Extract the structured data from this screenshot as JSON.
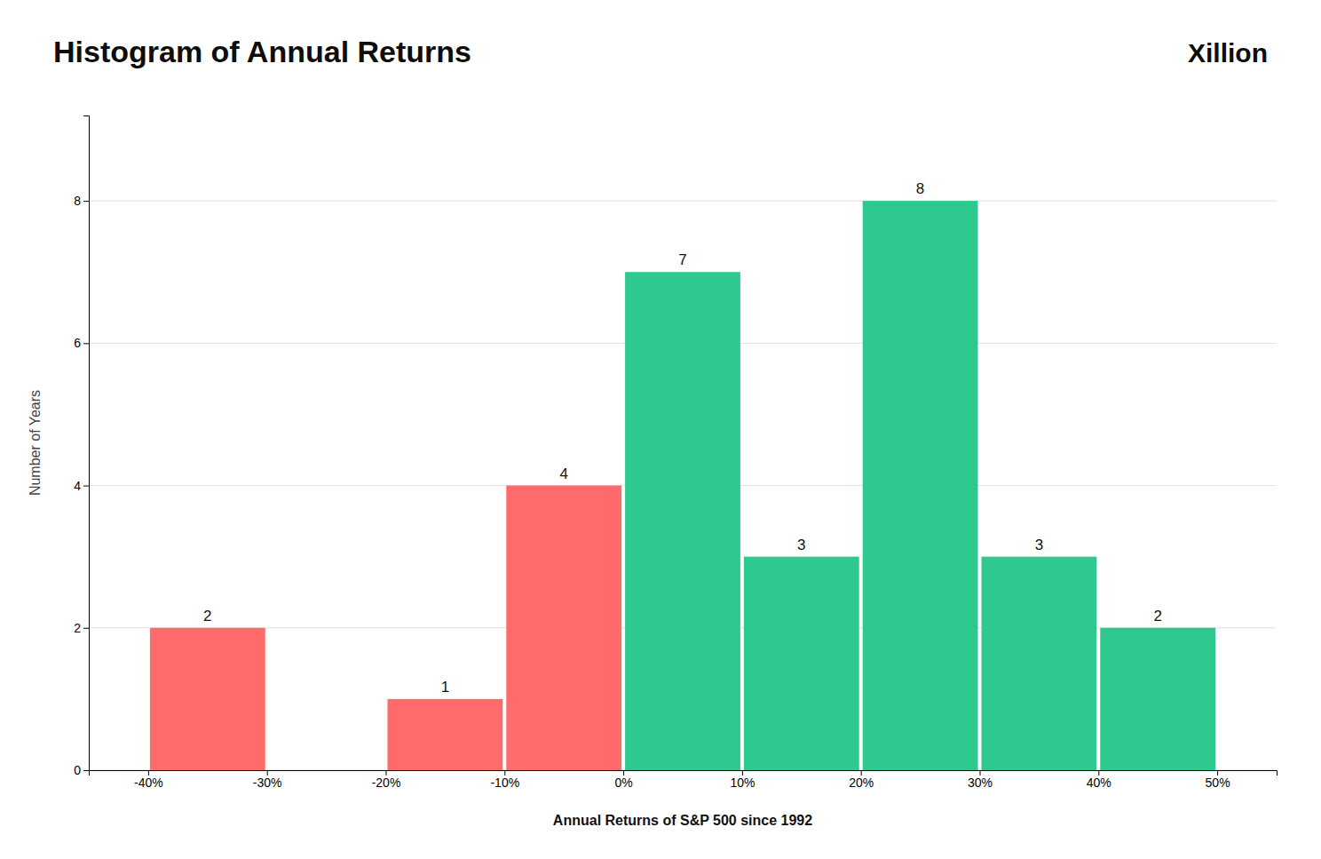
{
  "chart_data": {
    "type": "histogram",
    "title": "Histogram of Annual Returns",
    "xlabel": "Annual Returns of S&P 500 since 1992",
    "ylabel": "Number of Years",
    "bins": [
      -40,
      -30,
      -20,
      -10,
      0,
      10,
      20,
      30,
      40,
      50
    ],
    "values": [
      2,
      0,
      1,
      4,
      7,
      3,
      8,
      3,
      2
    ],
    "colors": [
      "#FF6B6B",
      "#FF6B6B",
      "#FF6B6B",
      "#FF6B6B",
      "#2DC98E",
      "#2DC98E",
      "#2DC98E",
      "#2DC98E",
      "#2DC98E"
    ],
    "data_labels": true,
    "value_labels": [
      "2",
      null,
      "1",
      "4",
      "7",
      "3",
      "8",
      "3",
      "2"
    ],
    "xlim": [
      -45,
      55
    ],
    "xticks": [
      {
        "value": -40,
        "label": "-40%"
      },
      {
        "value": -30,
        "label": "-30%"
      },
      {
        "value": -20,
        "label": "-20%"
      },
      {
        "value": -10,
        "label": "-10%"
      },
      {
        "value": 0,
        "label": "0%"
      },
      {
        "value": 10,
        "label": "10%"
      },
      {
        "value": 20,
        "label": "20%"
      },
      {
        "value": 30,
        "label": "30%"
      },
      {
        "value": 40,
        "label": "40%"
      },
      {
        "value": 50,
        "label": "50%"
      }
    ],
    "ylim": [
      0,
      9.2
    ],
    "yticks": [
      0,
      2,
      4,
      6,
      8
    ],
    "grid": true,
    "annotations": [
      "Xillion"
    ]
  }
}
